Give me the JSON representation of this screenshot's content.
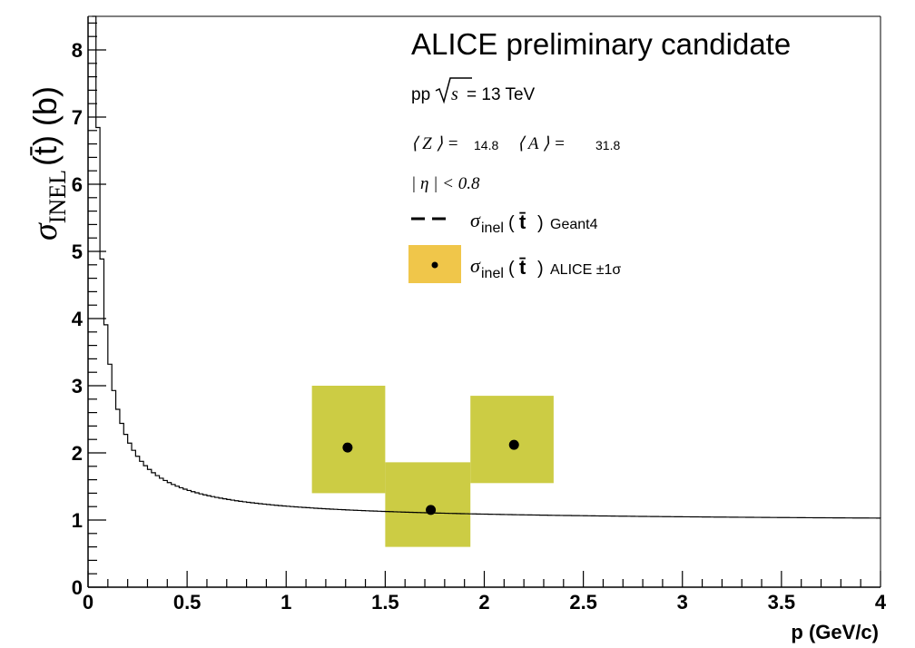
{
  "chart_data": {
    "type": "scatter",
    "title": "ALICE preliminary candidate",
    "xlabel": "p (GeV/c)",
    "ylabel_symbol": "σ",
    "ylabel_subscript": "INEL",
    "ylabel_rest": "(t̄) (b)",
    "xlim": [
      0,
      4
    ],
    "ylim": [
      0,
      8.5
    ],
    "x_ticks": [
      0,
      0.5,
      1,
      1.5,
      2,
      2.5,
      3,
      3.5,
      4
    ],
    "x_tick_labels": [
      "0",
      "0.5",
      "1",
      "1.5",
      "2",
      "2.5",
      "3",
      "3.5",
      "4"
    ],
    "y_ticks": [
      0,
      1,
      2,
      3,
      4,
      5,
      6,
      7,
      8
    ],
    "y_tick_labels": [
      "0",
      "1",
      "2",
      "3",
      "4",
      "5",
      "6",
      "7",
      "8"
    ],
    "grid": false,
    "legend_position": "top-right",
    "annotations": {
      "energy_prefix": "pp",
      "energy_value": "= 13 TeV",
      "z_label": "⟨ Z ⟩ =",
      "z_value": "14.8",
      "a_label": "⟨ A ⟩ =",
      "a_value": "31.8",
      "eta_cut": "| η | < 0.8"
    },
    "series": [
      {
        "name": "Geant4",
        "legend_prefix": "σ",
        "legend_sub": "inel",
        "legend_particle": "t̄",
        "legend_suffix": "Geant4",
        "kind": "step-line",
        "color": "#000000",
        "curve_params": {
          "a": 0.97,
          "b": 0.235
        }
      },
      {
        "name": "ALICE ±1σ",
        "legend_prefix": "σ",
        "legend_sub": "inel",
        "legend_particle": "t̄",
        "legend_suffix": "ALICE ±1σ",
        "kind": "points-with-bands",
        "color": "#000000",
        "band_color": "#cccc44",
        "legend_box_color": "#f0c64a",
        "points": [
          {
            "x": 1.31,
            "y": 2.08,
            "x_low": 1.13,
            "x_high": 1.5,
            "y_low": 1.4,
            "y_high": 3.0
          },
          {
            "x": 1.73,
            "y": 1.15,
            "x_low": 1.5,
            "x_high": 1.93,
            "y_low": 0.6,
            "y_high": 1.86
          },
          {
            "x": 2.15,
            "y": 2.12,
            "x_low": 1.93,
            "x_high": 2.35,
            "y_low": 1.55,
            "y_high": 2.85
          }
        ]
      }
    ]
  }
}
